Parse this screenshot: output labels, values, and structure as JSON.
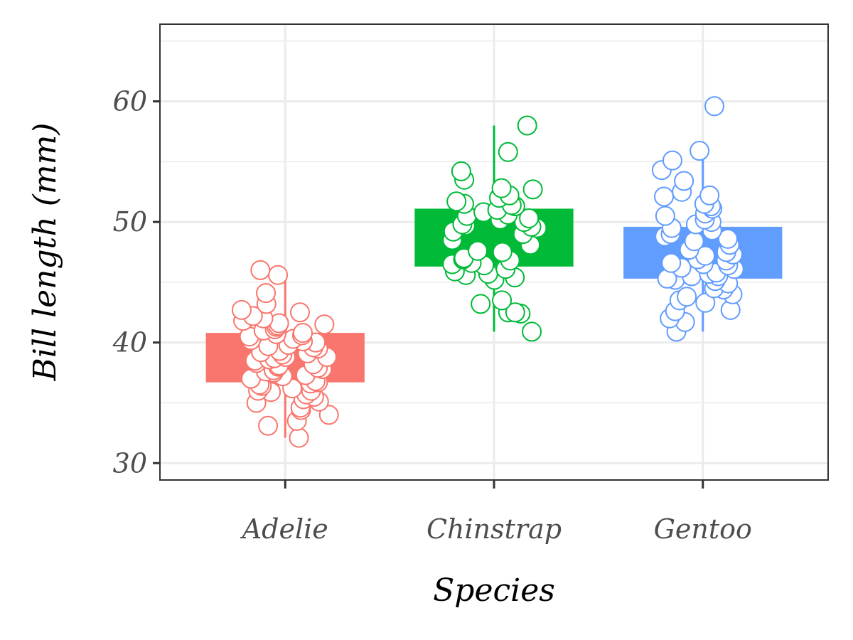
{
  "chart_data": {
    "type": "boxplot",
    "xlabel": "Species",
    "ylabel": "Bill length (mm)",
    "ylim": [
      28.6,
      66.4
    ],
    "y_ticks": [
      30,
      40,
      50,
      60
    ],
    "grid": true,
    "categories": [
      "Adelie",
      "Chinstrap",
      "Gentoo"
    ],
    "series": [
      {
        "name": "Adelie",
        "color": "#F8766D",
        "q1": 36.7,
        "median": 38.8,
        "q3": 40.8,
        "whisker_low": 32.1,
        "whisker_high": 46.0,
        "points": [
          32.1,
          33.1,
          33.5,
          34.0,
          34.4,
          34.6,
          35.0,
          35.1,
          35.3,
          35.5,
          35.7,
          35.9,
          36.0,
          36.0,
          36.2,
          36.4,
          36.5,
          36.6,
          36.7,
          36.8,
          37.0,
          37.2,
          37.3,
          37.5,
          37.6,
          37.7,
          37.8,
          37.9,
          38.0,
          38.1,
          38.2,
          38.3,
          38.5,
          38.6,
          38.7,
          38.8,
          38.8,
          39.0,
          39.1,
          39.2,
          39.3,
          39.5,
          39.6,
          39.7,
          39.8,
          40.0,
          40.1,
          40.2,
          40.3,
          40.5,
          40.6,
          40.7,
          40.8,
          41.0,
          41.1,
          41.3,
          41.4,
          41.5,
          41.6,
          41.8,
          42.0,
          42.2,
          42.5,
          42.7,
          43.2,
          44.1,
          45.6,
          46.0
        ]
      },
      {
        "name": "Chinstrap",
        "color": "#00BA38",
        "q1": 46.3,
        "median": 49.5,
        "q3": 51.1,
        "whisker_low": 40.9,
        "whisker_high": 58.0,
        "points": [
          40.9,
          42.4,
          42.5,
          42.5,
          43.2,
          43.5,
          45.2,
          45.4,
          45.6,
          45.7,
          45.9,
          46.1,
          46.4,
          46.5,
          46.6,
          46.8,
          46.9,
          47.0,
          47.5,
          47.6,
          48.1,
          48.5,
          49.0,
          49.2,
          49.5,
          49.6,
          49.7,
          49.8,
          50.0,
          50.2,
          50.3,
          50.5,
          50.6,
          50.8,
          51.0,
          51.3,
          51.4,
          51.5,
          51.7,
          52.0,
          52.2,
          52.7,
          52.8,
          53.5,
          54.2,
          55.8,
          58.0
        ]
      },
      {
        "name": "Gentoo",
        "color": "#619CFF",
        "q1": 45.3,
        "median": 47.3,
        "q3": 49.6,
        "whisker_low": 40.9,
        "whisker_high": 55.9,
        "points": [
          40.9,
          41.7,
          42.0,
          42.6,
          42.7,
          43.3,
          43.5,
          43.8,
          44.0,
          44.4,
          44.5,
          44.9,
          45.1,
          45.2,
          45.3,
          45.5,
          45.5,
          45.7,
          45.8,
          46.1,
          46.2,
          46.4,
          46.5,
          46.6,
          46.8,
          46.9,
          47.2,
          47.3,
          47.5,
          47.7,
          48.1,
          48.4,
          48.6,
          48.8,
          49.0,
          49.3,
          49.5,
          49.8,
          50.0,
          50.2,
          50.5,
          50.7,
          51.1,
          51.3,
          51.5,
          52.1,
          52.2,
          52.5,
          53.4,
          54.3,
          55.1,
          55.9,
          59.6
        ]
      }
    ]
  }
}
